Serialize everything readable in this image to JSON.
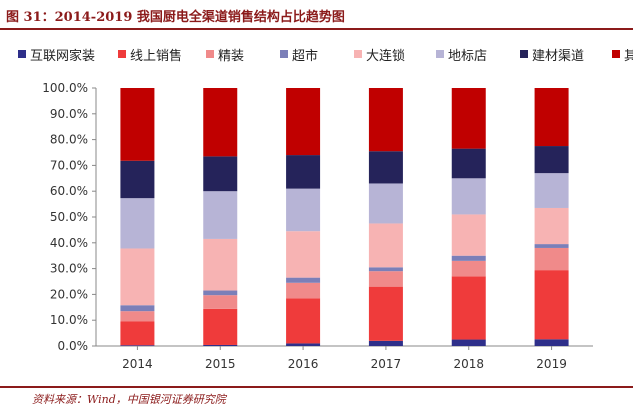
{
  "header": {
    "title": "图 31：2014-2019 我国厨电全渠道销售结构占比趋势图"
  },
  "footer": {
    "source": "资料来源：Wind，中国银河证券研究院"
  },
  "colors": {
    "title": "#8b1a1a",
    "series": [
      "#2e2f8a",
      "#ef3b3b",
      "#f08a8a",
      "#7b7fb8",
      "#f7b3b3",
      "#b7b4d6",
      "#25235a",
      "#c00000"
    ]
  },
  "chart_data": {
    "type": "bar",
    "stacked": true,
    "categories": [
      "2014",
      "2015",
      "2016",
      "2017",
      "2018",
      "2019"
    ],
    "series": [
      {
        "name": "互联网家装",
        "values": [
          0.3,
          0.4,
          1.0,
          2.0,
          2.5,
          2.6
        ]
      },
      {
        "name": "线上销售",
        "values": [
          9.2,
          14.0,
          17.5,
          21.0,
          24.5,
          26.8
        ]
      },
      {
        "name": "精装",
        "values": [
          4.0,
          5.3,
          6.0,
          6.0,
          6.0,
          8.6
        ]
      },
      {
        "name": "超市",
        "values": [
          2.3,
          1.8,
          2.0,
          1.5,
          2.0,
          1.5
        ]
      },
      {
        "name": "大连锁",
        "values": [
          22.0,
          20.0,
          18.0,
          17.0,
          16.0,
          14.0
        ]
      },
      {
        "name": "地标店",
        "values": [
          19.5,
          18.5,
          16.5,
          15.5,
          14.0,
          13.5
        ]
      },
      {
        "name": "建材渠道",
        "values": [
          14.5,
          13.5,
          13.0,
          12.5,
          11.5,
          10.5
        ]
      },
      {
        "name": "其他",
        "values": [
          28.2,
          26.5,
          26.0,
          24.5,
          23.5,
          22.5
        ]
      }
    ],
    "yticks": [
      "0.0%",
      "10.0%",
      "20.0%",
      "30.0%",
      "40.0%",
      "50.0%",
      "60.0%",
      "70.0%",
      "80.0%",
      "90.0%",
      "100.0%"
    ],
    "ylim": [
      0,
      100
    ],
    "legend_position": "top"
  }
}
